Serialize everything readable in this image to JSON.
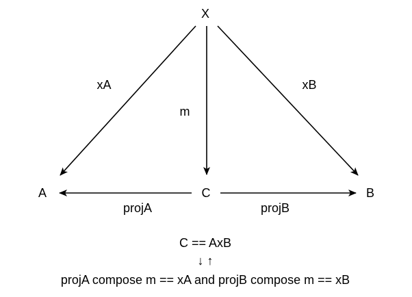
{
  "nodes": {
    "x": "X",
    "a": "A",
    "b": "B",
    "c": "C"
  },
  "edges": {
    "xa": "xA",
    "xb": "xB",
    "m": "m",
    "proj_a": "projA",
    "proj_b": "projB"
  },
  "caption": {
    "equation": "C == AxB",
    "equivalence": "↓ ↑",
    "condition": "projA compose m == xA and projB compose m == xB"
  },
  "colors": {
    "stroke": "#000000",
    "background": "#ffffff"
  }
}
